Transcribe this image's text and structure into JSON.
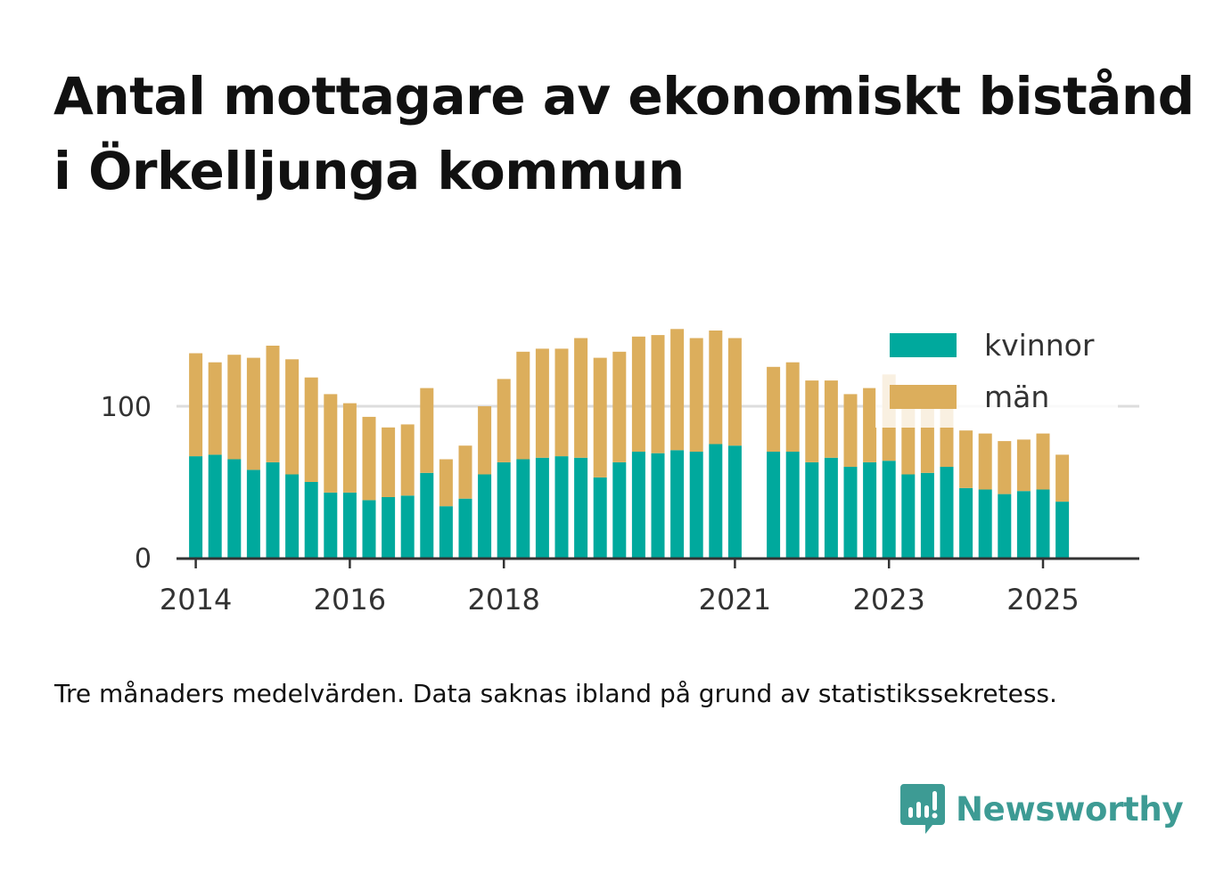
{
  "title": "Antal mottagare av ekonomiskt bistånd i Örkelljunga kommun",
  "footnote": "Tre månaders medelvärden. Data saknas ibland på grund av statistikssekretess.",
  "brand": {
    "name": "Newsworthy",
    "icon": "bar-chart-speech-bubble-icon",
    "color": "#3d9b94"
  },
  "colors": {
    "kvinnor": "#00a99d",
    "man": "#dcae5c",
    "axis": "#333333",
    "grid": "#dddddd",
    "text": "#333333"
  },
  "chart_data": {
    "type": "bar",
    "stacked": true,
    "x_start": 2014,
    "x_step": 0.25,
    "x_range": [
      2013.75,
      2026.25
    ],
    "categories": [
      "2014 Q2",
      "2014 Q3",
      "2014 Q4",
      "2015 Q1",
      "2015 Q2",
      "2015 Q3",
      "2015 Q4",
      "2016 Q1",
      "2016 Q2",
      "2016 Q3",
      "2016 Q4",
      "2017 Q1",
      "2017 Q2",
      "2017 Q3",
      "2017 Q4",
      "2018 Q1",
      "2018 Q2",
      "2018 Q3",
      "2018 Q4",
      "2019 Q1",
      "2019 Q2",
      "2019 Q3",
      "2019 Q4",
      "2020 Q1",
      "2020 Q2",
      "2020 Q3",
      "2020 Q4",
      "2021 Q1",
      "2021 Q2",
      "2021 Q3",
      "2021 Q4",
      "2022 Q1",
      "2022 Q2",
      "2022 Q3",
      "2022 Q4",
      "2023 Q1",
      "2023 Q2",
      "2023 Q3",
      "2023 Q4",
      "2024 Q1",
      "2024 Q2",
      "2024 Q3",
      "2024 Q4",
      "2025 Q1",
      "2025 Q2",
      "2025 Q3"
    ],
    "series": [
      {
        "name": "kvinnor",
        "values": [
          67,
          68,
          65,
          58,
          63,
          55,
          50,
          43,
          43,
          38,
          40,
          41,
          56,
          34,
          39,
          55,
          63,
          65,
          66,
          67,
          66,
          53,
          63,
          70,
          69,
          71,
          70,
          75,
          74,
          null,
          70,
          70,
          63,
          66,
          60,
          63,
          64,
          55,
          56,
          60,
          46,
          45,
          42,
          44,
          45,
          37
        ]
      },
      {
        "name": "män",
        "values": [
          68,
          61,
          69,
          74,
          77,
          76,
          69,
          65,
          59,
          55,
          46,
          47,
          56,
          31,
          35,
          45,
          55,
          71,
          72,
          71,
          79,
          79,
          73,
          76,
          78,
          80,
          75,
          75,
          71,
          null,
          56,
          59,
          54,
          51,
          48,
          49,
          57,
          50,
          51,
          48,
          38,
          37,
          35,
          34,
          37,
          31
        ]
      }
    ],
    "yticks": [
      "0",
      "100"
    ],
    "yrange": [
      0,
      160
    ],
    "xticks": [
      "2014",
      "2016",
      "2018",
      "2021",
      "2023",
      "2025"
    ],
    "legend": [
      "kvinnor",
      "män"
    ],
    "legend_position": "top-right",
    "grid": true
  }
}
